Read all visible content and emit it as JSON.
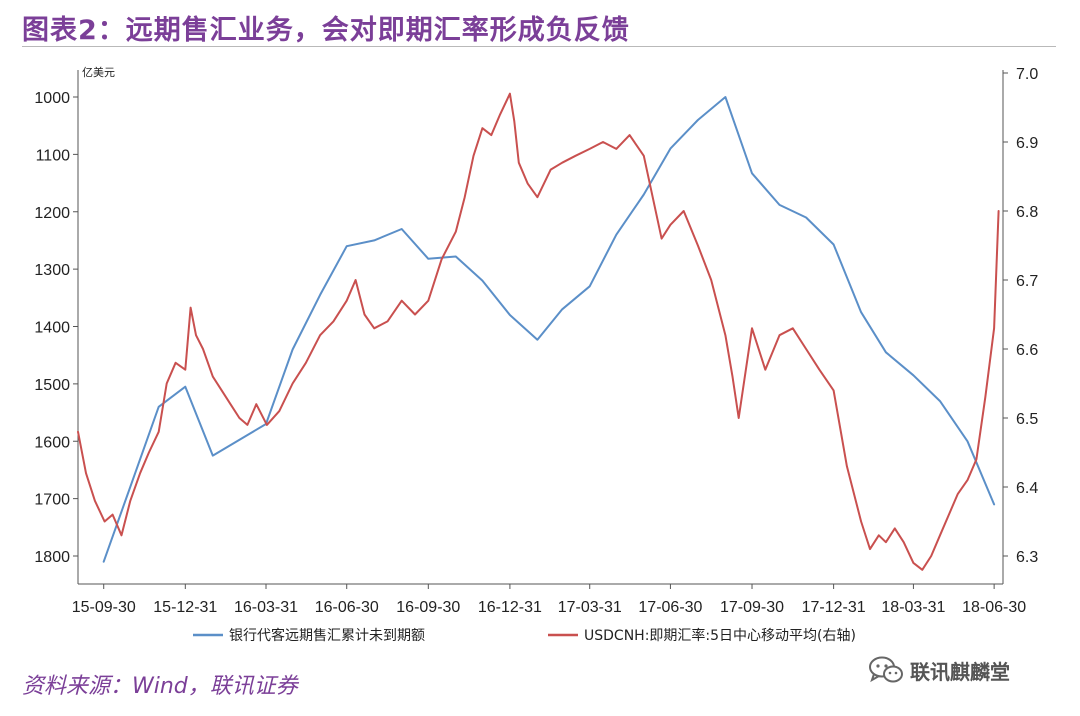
{
  "header": {
    "title": "图表2：远期售汇业务，会对即期汇率形成负反馈"
  },
  "footer": {
    "source": "资料来源：Wind，联讯证券"
  },
  "watermark": {
    "icon": "wechat-icon",
    "text": "联讯麒麟堂"
  },
  "colors": {
    "title": "#7b3f98",
    "series_left": "#5b8fc8",
    "series_right": "#c9504f",
    "axis": "#555555"
  },
  "chart_data": {
    "type": "line",
    "left_axis": {
      "unit": "亿美元",
      "inverted": true,
      "range": [
        1000,
        1800
      ],
      "ticks": [
        1000,
        1100,
        1200,
        1300,
        1400,
        1500,
        1600,
        1700,
        1800
      ]
    },
    "right_axis": {
      "range": [
        6.3,
        7.0
      ],
      "ticks": [
        6.3,
        6.4,
        6.5,
        6.6,
        6.7,
        6.8,
        6.9,
        7.0
      ]
    },
    "x_axis": {
      "range": [
        "2015-09-01",
        "2018-07-10"
      ],
      "tick_labels": [
        "15-09-30",
        "15-12-31",
        "16-03-31",
        "16-06-30",
        "16-09-30",
        "16-12-31",
        "17-03-31",
        "17-06-30",
        "17-09-30",
        "17-12-31",
        "18-03-31",
        "18-06-30"
      ]
    },
    "legend": {
      "placement": "bottom"
    },
    "series": [
      {
        "name": "银行代客远期售汇累计未到期额",
        "axis": "left",
        "x": [
          "2015-09-30",
          "2015-12-01",
          "2015-12-31",
          "2016-01-31",
          "2016-03-31",
          "2016-04-30",
          "2016-05-31",
          "2016-06-30",
          "2016-07-31",
          "2016-08-31",
          "2016-09-30",
          "2016-10-31",
          "2016-11-30",
          "2016-12-31",
          "2017-01-31",
          "2017-02-28",
          "2017-03-31",
          "2017-04-30",
          "2017-05-31",
          "2017-06-30",
          "2017-07-31",
          "2017-08-31",
          "2017-09-30",
          "2017-10-31",
          "2017-11-30",
          "2017-12-31",
          "2018-01-31",
          "2018-02-28",
          "2018-03-31",
          "2018-04-30",
          "2018-05-31",
          "2018-06-30"
        ],
        "values": [
          1810,
          1540,
          1505,
          1625,
          1570,
          1440,
          1345,
          1260,
          1250,
          1230,
          1282,
          1278,
          1320,
          1380,
          1423,
          1370,
          1330,
          1240,
          1170,
          1090,
          1040,
          1000,
          1133,
          1188,
          1210,
          1257,
          1375,
          1445,
          1485,
          1530,
          1600,
          1710
        ]
      },
      {
        "name": "USDCNH:即期汇率:5日中心移动平均(右轴)",
        "axis": "right",
        "x": [
          "2015-09-01",
          "2015-09-10",
          "2015-09-20",
          "2015-10-01",
          "2015-10-10",
          "2015-10-20",
          "2015-10-30",
          "2015-11-10",
          "2015-11-20",
          "2015-12-01",
          "2015-12-10",
          "2015-12-20",
          "2015-12-31",
          "2016-01-06",
          "2016-01-12",
          "2016-01-20",
          "2016-01-31",
          "2016-02-10",
          "2016-02-20",
          "2016-03-01",
          "2016-03-10",
          "2016-03-20",
          "2016-04-01",
          "2016-04-15",
          "2016-04-30",
          "2016-05-15",
          "2016-05-31",
          "2016-06-15",
          "2016-06-30",
          "2016-07-10",
          "2016-07-20",
          "2016-07-31",
          "2016-08-15",
          "2016-08-31",
          "2016-09-15",
          "2016-09-30",
          "2016-10-15",
          "2016-10-31",
          "2016-11-10",
          "2016-11-20",
          "2016-11-30",
          "2016-12-10",
          "2016-12-20",
          "2016-12-31",
          "2017-01-05",
          "2017-01-10",
          "2017-01-20",
          "2017-01-31",
          "2017-02-15",
          "2017-02-28",
          "2017-03-15",
          "2017-03-31",
          "2017-04-15",
          "2017-04-30",
          "2017-05-15",
          "2017-05-31",
          "2017-06-10",
          "2017-06-20",
          "2017-06-30",
          "2017-07-15",
          "2017-07-31",
          "2017-08-15",
          "2017-08-31",
          "2017-09-08",
          "2017-09-15",
          "2017-09-30",
          "2017-10-15",
          "2017-10-31",
          "2017-11-15",
          "2017-11-30",
          "2017-12-15",
          "2017-12-31",
          "2018-01-15",
          "2018-01-31",
          "2018-02-10",
          "2018-02-20",
          "2018-02-28",
          "2018-03-10",
          "2018-03-20",
          "2018-03-31",
          "2018-04-10",
          "2018-04-20",
          "2018-04-30",
          "2018-05-10",
          "2018-05-20",
          "2018-05-31",
          "2018-06-10",
          "2018-06-20",
          "2018-06-30",
          "2018-07-05"
        ],
        "values": [
          6.48,
          6.42,
          6.38,
          6.35,
          6.36,
          6.33,
          6.38,
          6.42,
          6.45,
          6.48,
          6.55,
          6.58,
          6.57,
          6.66,
          6.62,
          6.6,
          6.56,
          6.54,
          6.52,
          6.5,
          6.49,
          6.52,
          6.49,
          6.51,
          6.55,
          6.58,
          6.62,
          6.64,
          6.67,
          6.7,
          6.65,
          6.63,
          6.64,
          6.67,
          6.65,
          6.67,
          6.73,
          6.77,
          6.82,
          6.88,
          6.92,
          6.91,
          6.94,
          6.97,
          6.93,
          6.87,
          6.84,
          6.82,
          6.86,
          6.87,
          6.88,
          6.89,
          6.9,
          6.89,
          6.91,
          6.88,
          6.82,
          6.76,
          6.78,
          6.8,
          6.75,
          6.7,
          6.62,
          6.56,
          6.5,
          6.63,
          6.57,
          6.62,
          6.63,
          6.6,
          6.57,
          6.54,
          6.43,
          6.35,
          6.31,
          6.33,
          6.32,
          6.34,
          6.32,
          6.29,
          6.28,
          6.3,
          6.33,
          6.36,
          6.39,
          6.41,
          6.44,
          6.53,
          6.63,
          6.8
        ]
      }
    ]
  }
}
